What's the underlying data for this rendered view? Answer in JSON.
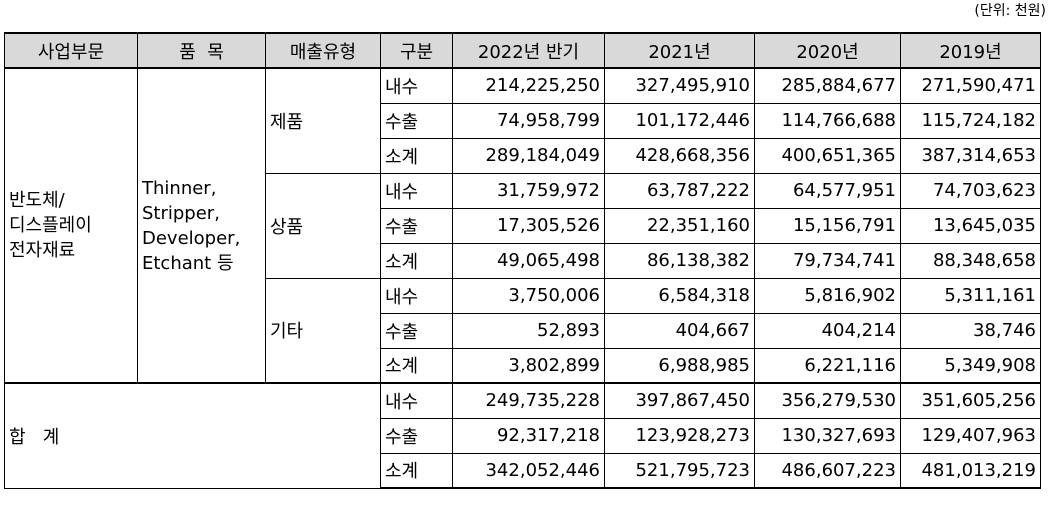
{
  "unit_note": "(단위: 천원)",
  "headers": [
    "사업부문",
    "품  목",
    "매출유형",
    "구분",
    "2022년 반기",
    "2021년",
    "2020년",
    "2019년"
  ],
  "segment_lines": [
    "반도체/",
    "디스플레이",
    "전자재료"
  ],
  "item_lines": [
    "Thinner,",
    "Stripper,",
    "Developer,",
    "Etchant 등"
  ],
  "groups": [
    {
      "type": "제품",
      "rows": [
        {
          "kind": "내수",
          "values": [
            "214,225,250",
            "327,495,910",
            "285,884,677",
            "271,590,471"
          ]
        },
        {
          "kind": "수출",
          "values": [
            "74,958,799",
            "101,172,446",
            "114,766,688",
            "115,724,182"
          ]
        },
        {
          "kind": "소계",
          "values": [
            "289,184,049",
            "428,668,356",
            "400,651,365",
            "387,314,653"
          ]
        }
      ]
    },
    {
      "type": "상품",
      "rows": [
        {
          "kind": "내수",
          "values": [
            "31,759,972",
            "63,787,222",
            "64,577,951",
            "74,703,623"
          ]
        },
        {
          "kind": "수출",
          "values": [
            "17,305,526",
            "22,351,160",
            "15,156,791",
            "13,645,035"
          ]
        },
        {
          "kind": "소계",
          "values": [
            "49,065,498",
            "86,138,382",
            "79,734,741",
            "88,348,658"
          ]
        }
      ]
    },
    {
      "type": "기타",
      "rows": [
        {
          "kind": "내수",
          "values": [
            "3,750,006",
            "6,584,318",
            "5,816,902",
            "5,311,161"
          ]
        },
        {
          "kind": "수출",
          "values": [
            "52,893",
            "404,667",
            "404,214",
            "38,746"
          ]
        },
        {
          "kind": "소계",
          "values": [
            "3,802,899",
            "6,988,985",
            "6,221,116",
            "5,349,908"
          ]
        }
      ]
    }
  ],
  "total": {
    "label": "합   계",
    "rows": [
      {
        "kind": "내수",
        "values": [
          "249,735,228",
          "397,867,450",
          "356,279,530",
          "351,605,256"
        ]
      },
      {
        "kind": "수출",
        "values": [
          "92,317,218",
          "123,928,273",
          "130,327,693",
          "129,407,963"
        ]
      },
      {
        "kind": "소계",
        "values": [
          "342,052,446",
          "521,795,723",
          "486,607,223",
          "481,013,219"
        ]
      }
    ]
  }
}
